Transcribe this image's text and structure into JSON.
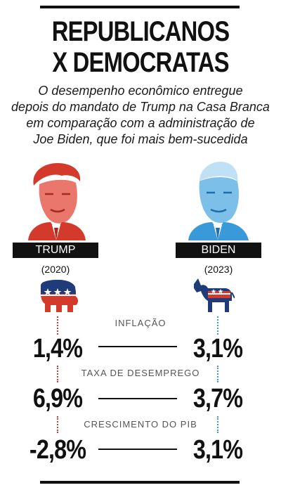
{
  "title": {
    "line1": "REPUBLICANOS",
    "line2": "X DEMOCRATAS"
  },
  "subtitle_lines": [
    "O desempenho econômico entregue",
    "depois do mandato de Trump na Casa Branca",
    "em comparação com a administração de",
    "Joe Biden, que foi mais bem-sucedida"
  ],
  "left": {
    "name": "TRUMP",
    "year": "(2020)",
    "color": "#d33a2c",
    "mascot": "elephant-icon"
  },
  "right": {
    "name": "BIDEN",
    "year": "(2023)",
    "color": "#3a9ad9",
    "mascot": "donkey-icon"
  },
  "metrics": [
    {
      "label": "INFLAÇÃO",
      "left_value": "1,4%",
      "right_value": "3,1%"
    },
    {
      "label": "TAXA DE DESEMPREGO",
      "left_value": "6,9%",
      "right_value": "3,7%"
    },
    {
      "label": "CRESCIMENTO DO PIB",
      "left_value": "-2,8%",
      "right_value": "3,1%"
    }
  ]
}
